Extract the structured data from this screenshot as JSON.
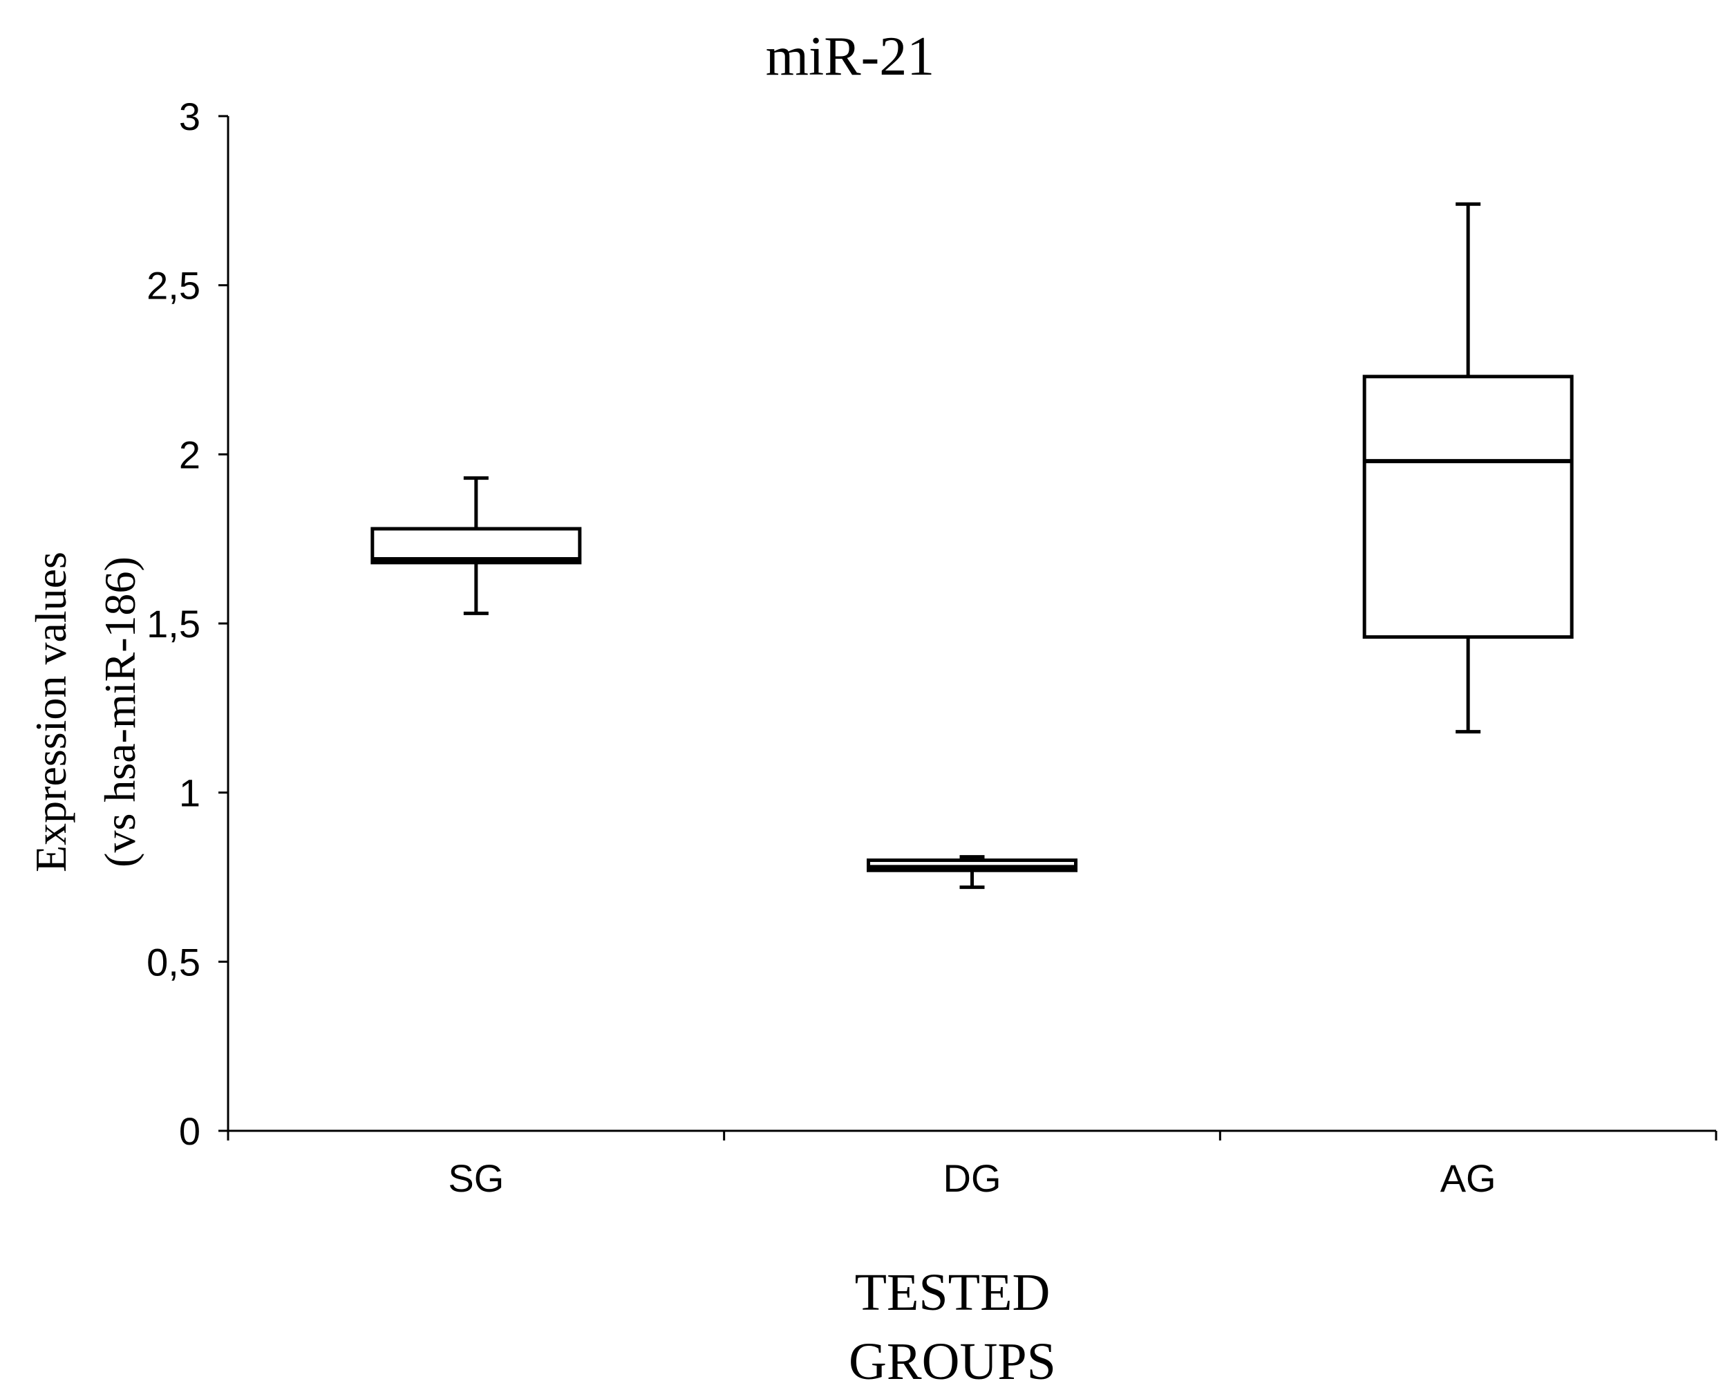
{
  "chart_data": {
    "type": "box",
    "title": "miR-21",
    "ylabel_line1": "Expression values",
    "ylabel_line2": "(vs hsa-miR-186)",
    "xlabel_line1": "TESTED",
    "xlabel_line2": "GROUPS",
    "ylim": [
      0,
      3
    ],
    "yticks": [
      {
        "value": 0,
        "label": "0"
      },
      {
        "value": 0.5,
        "label": "0,5"
      },
      {
        "value": 1,
        "label": "1"
      },
      {
        "value": 1.5,
        "label": "1,5"
      },
      {
        "value": 2,
        "label": "2"
      },
      {
        "value": 2.5,
        "label": "2,5"
      },
      {
        "value": 3,
        "label": "3"
      }
    ],
    "grid": false,
    "categories": [
      "SG",
      "DG",
      "AG"
    ],
    "boxes": [
      {
        "category": "SG",
        "min": 1.53,
        "q1": 1.68,
        "median": 1.69,
        "q3": 1.78,
        "max": 1.93
      },
      {
        "category": "DG",
        "min": 0.72,
        "q1": 0.77,
        "median": 0.78,
        "q3": 0.8,
        "max": 0.81
      },
      {
        "category": "AG",
        "min": 1.18,
        "q1": 1.46,
        "median": 1.98,
        "q3": 2.23,
        "max": 2.74
      }
    ],
    "colors": {
      "stroke": "#000000",
      "box_fill": "#ffffff",
      "axis": "#000000"
    }
  }
}
